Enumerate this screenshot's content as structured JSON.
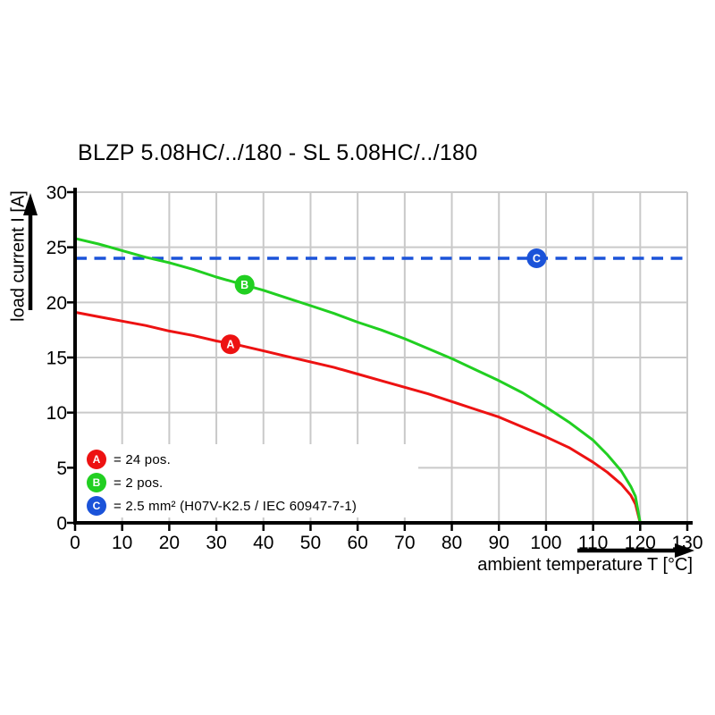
{
  "title": "BLZP 5.08HC/../180 - SL 5.08HC/../180",
  "colors": {
    "series_a_red": "#ed1212",
    "series_b_green": "#21cf21",
    "ref_c_blue": "#1b53d9",
    "gridline": "#c9c9c9",
    "axis": "#000000"
  },
  "chart_data": {
    "type": "line",
    "title": "BLZP 5.08HC/../180 - SL 5.08HC/../180",
    "xlabel": "ambient temperature T [°C]",
    "ylabel": "load current I [A]",
    "xlim": [
      0,
      130
    ],
    "ylim": [
      0,
      30
    ],
    "x_ticks": [
      0,
      10,
      20,
      30,
      40,
      50,
      60,
      70,
      80,
      90,
      100,
      110,
      120,
      130
    ],
    "y_ticks": [
      0,
      5,
      10,
      15,
      20,
      25,
      30
    ],
    "grid": true,
    "legend_position": "lower-left",
    "series": [
      {
        "id": "A",
        "name": "24 pos.",
        "color": "#ed1212",
        "x": [
          0,
          5,
          10,
          15,
          20,
          25,
          30,
          35,
          40,
          45,
          50,
          55,
          60,
          65,
          70,
          75,
          80,
          85,
          90,
          95,
          100,
          105,
          110,
          113,
          116,
          118,
          119,
          120
        ],
        "y": [
          19.1,
          18.7,
          18.3,
          17.9,
          17.4,
          17.0,
          16.5,
          16.1,
          15.6,
          15.1,
          14.6,
          14.1,
          13.5,
          12.9,
          12.3,
          11.7,
          11.0,
          10.3,
          9.6,
          8.7,
          7.8,
          6.8,
          5.5,
          4.6,
          3.5,
          2.5,
          1.7,
          0
        ]
      },
      {
        "id": "B",
        "name": "2 pos.",
        "color": "#21cf21",
        "x": [
          0,
          5,
          10,
          15,
          20,
          25,
          30,
          35,
          40,
          45,
          50,
          55,
          60,
          65,
          70,
          75,
          80,
          85,
          90,
          95,
          100,
          105,
          110,
          113,
          116,
          118,
          119,
          120
        ],
        "y": [
          25.8,
          25.3,
          24.7,
          24.1,
          23.6,
          23.0,
          22.3,
          21.7,
          21.1,
          20.4,
          19.7,
          19.0,
          18.2,
          17.5,
          16.7,
          15.8,
          14.9,
          13.9,
          12.9,
          11.8,
          10.5,
          9.1,
          7.5,
          6.2,
          4.7,
          3.3,
          2.4,
          0
        ]
      }
    ],
    "reference_line": {
      "id": "C",
      "name": "2.5 mm² (H07V-K2.5 / IEC 60947-7-1)",
      "value": 24,
      "color": "#1b53d9",
      "style": "dashed"
    },
    "markers": [
      {
        "label": "A",
        "x": 33,
        "y": 16.2,
        "color": "#ed1212"
      },
      {
        "label": "B",
        "x": 36,
        "y": 21.6,
        "color": "#21cf21"
      },
      {
        "label": "C",
        "x": 98,
        "y": 24.0,
        "color": "#1b53d9"
      }
    ]
  },
  "legend": {
    "items": [
      {
        "letter": "A",
        "color": "#ed1212",
        "label": "= 24 pos."
      },
      {
        "letter": "B",
        "color": "#21cf21",
        "label": "= 2 pos."
      },
      {
        "letter": "C",
        "color": "#1b53d9",
        "label": "= 2.5 mm² (H07V-K2.5 / IEC 60947-7-1)"
      }
    ]
  }
}
